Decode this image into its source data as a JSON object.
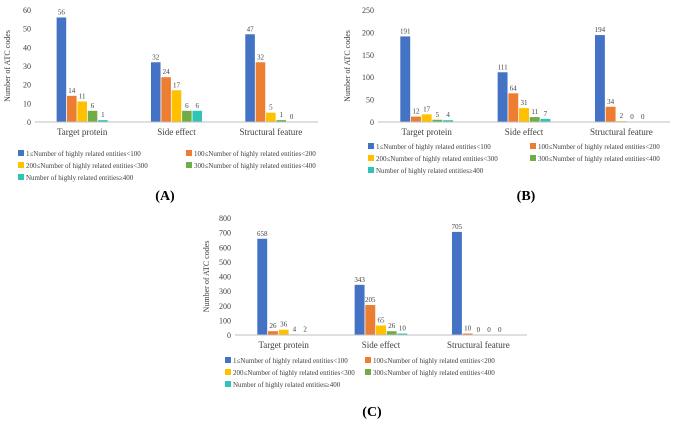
{
  "legend_entries": [
    "1≤Number of highly related entities<100",
    "100≤Number of highly related entities<200",
    "200≤Number of highly related entities<300",
    "300≤Number of highly related entities<400",
    "Number of highly related entities≥400"
  ],
  "colors": [
    "#4472C4",
    "#ED7D31",
    "#FFC000",
    "#70AD47",
    "#2EC4B6"
  ],
  "chart_data": [
    {
      "panel": "(A)",
      "type": "bar",
      "ylabel": "Number of ATC codes",
      "ylim": [
        0,
        60
      ],
      "yticks": [
        0,
        10,
        20,
        30,
        40,
        50,
        60
      ],
      "categories": [
        "Target protein",
        "Side effect",
        "Structural feature"
      ],
      "series": [
        {
          "name": "1≤Number of highly related entities<100",
          "values": [
            56,
            32,
            47
          ]
        },
        {
          "name": "100≤Number of highly related entities<200",
          "values": [
            14,
            24,
            32
          ]
        },
        {
          "name": "200≤Number of highly related entities<300",
          "values": [
            11,
            17,
            5
          ]
        },
        {
          "name": "300≤Number of highly related entities<400",
          "values": [
            6,
            6,
            1
          ]
        },
        {
          "name": "Number of highly related entities≥400",
          "values": [
            1,
            6,
            0
          ]
        }
      ]
    },
    {
      "panel": "(B)",
      "type": "bar",
      "ylabel": "Number of ATC codes",
      "ylim": [
        0,
        250
      ],
      "yticks": [
        0,
        50,
        100,
        150,
        200,
        250
      ],
      "categories": [
        "Target protein",
        "Side effect",
        "Structural feature"
      ],
      "series": [
        {
          "name": "1≤Number of highly related entities<100",
          "values": [
            191,
            111,
            194
          ]
        },
        {
          "name": "100≤Number of highly related entities<200",
          "values": [
            12,
            64,
            34
          ]
        },
        {
          "name": "200≤Number of highly related entities<300",
          "values": [
            17,
            31,
            2
          ]
        },
        {
          "name": "300≤Number of highly related entities<400",
          "values": [
            5,
            11,
            0
          ]
        },
        {
          "name": "Number of highly related entities≥400",
          "values": [
            4,
            7,
            0
          ]
        }
      ]
    },
    {
      "panel": "(C)",
      "type": "bar",
      "ylabel": "Number of ATC codes",
      "ylim": [
        0,
        800
      ],
      "yticks": [
        0,
        100,
        200,
        300,
        400,
        500,
        600,
        700,
        800
      ],
      "categories": [
        "Target protein",
        "Side effect",
        "Structural feature"
      ],
      "series": [
        {
          "name": "1≤Number of highly related entities<100",
          "values": [
            658,
            343,
            705
          ]
        },
        {
          "name": "100≤Number of highly related entities<200",
          "values": [
            26,
            205,
            10
          ]
        },
        {
          "name": "200≤Number of highly related entities<300",
          "values": [
            36,
            65,
            0
          ]
        },
        {
          "name": "300≤Number of highly related entities<400",
          "values": [
            4,
            26,
            0
          ]
        },
        {
          "name": "Number of highly related entities≥400",
          "values": [
            2,
            10,
            0
          ]
        }
      ]
    }
  ]
}
